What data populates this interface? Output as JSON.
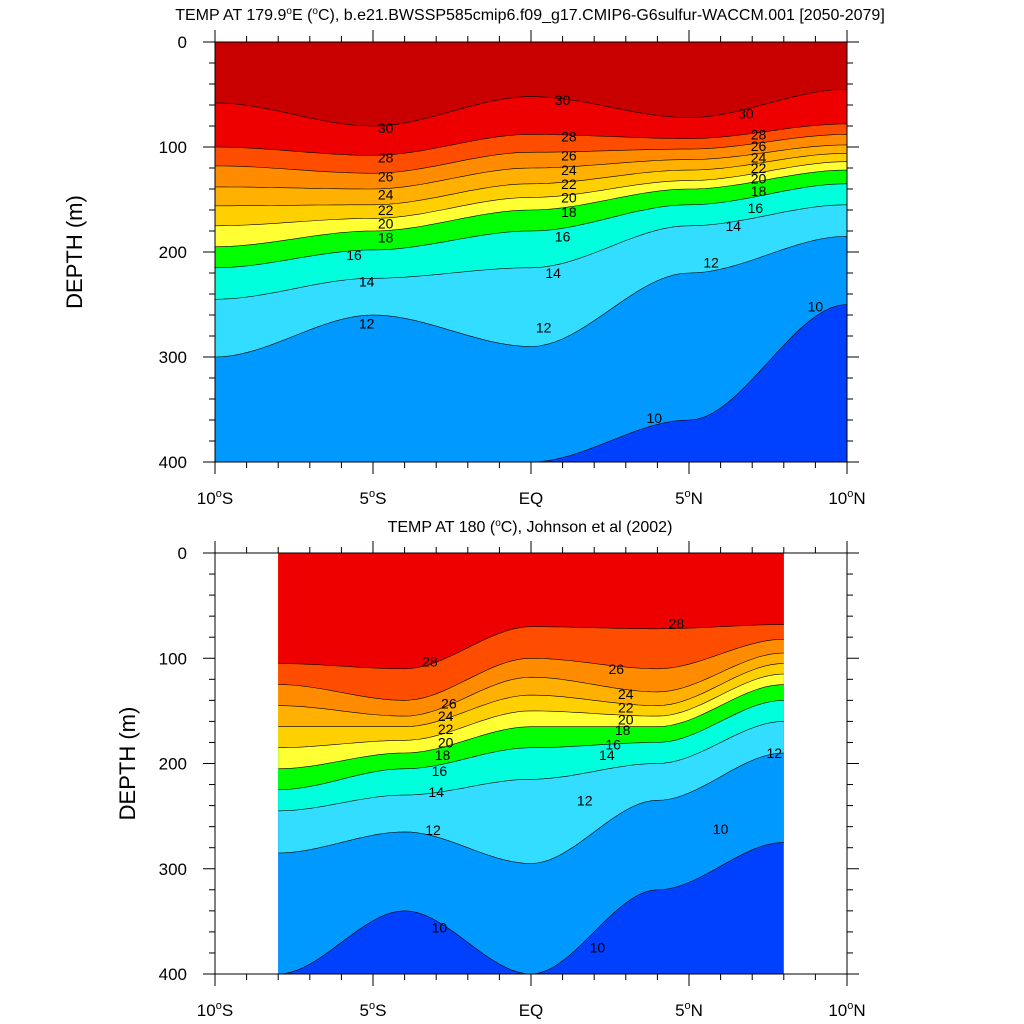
{
  "chart_data": [
    {
      "type": "heatmap",
      "subtype": "filled-contour",
      "title_parts": [
        "TEMP AT 179.9",
        "o",
        "E (",
        "o",
        "C), b.e21.BWSSP585cmip6.f09_g17.CMIP6-G6sulfur-WACCM.001 [2050-2079]"
      ],
      "xlabel": "",
      "ylabel": "DEPTH (m)",
      "xlim": [
        -10,
        10
      ],
      "ylim": [
        400,
        0
      ],
      "x_ticks": [
        {
          "value": -10,
          "num": "10",
          "hem": "S"
        },
        {
          "value": -5,
          "num": "5",
          "hem": "S"
        },
        {
          "value": 0,
          "num": "EQ",
          "hem": ""
        },
        {
          "value": 5,
          "num": "5",
          "hem": "N"
        },
        {
          "value": 10,
          "num": "10",
          "hem": "N"
        }
      ],
      "y_ticks": [
        "0",
        "100",
        "200",
        "300",
        "400"
      ],
      "y_tick_values": [
        0,
        100,
        200,
        300,
        400
      ],
      "data_extent_lat": [
        -10,
        10
      ],
      "contour_levels": [
        30,
        28,
        26,
        24,
        22,
        20,
        18,
        16,
        14,
        12,
        10
      ],
      "isotherm_depths_m": [
        {
          "level": 30,
          "lat": [
            -10,
            -5,
            0,
            5,
            10
          ],
          "depth": [
            58,
            80,
            52,
            72,
            45
          ]
        },
        {
          "level": 28,
          "lat": [
            -10,
            -5,
            0,
            5,
            10
          ],
          "depth": [
            100,
            108,
            88,
            92,
            78
          ]
        },
        {
          "level": 26,
          "lat": [
            -10,
            -5,
            0,
            5,
            10
          ],
          "depth": [
            118,
            125,
            105,
            102,
            88
          ]
        },
        {
          "level": 24,
          "lat": [
            -10,
            -5,
            0,
            5,
            10
          ],
          "depth": [
            138,
            140,
            120,
            112,
            98
          ]
        },
        {
          "level": 22,
          "lat": [
            -10,
            -5,
            0,
            5,
            10
          ],
          "depth": [
            156,
            155,
            135,
            122,
            106
          ]
        },
        {
          "level": 20,
          "lat": [
            -10,
            -5,
            0,
            5,
            10
          ],
          "depth": [
            175,
            168,
            148,
            132,
            114
          ]
        },
        {
          "level": 18,
          "lat": [
            -10,
            -5,
            0,
            5,
            10
          ],
          "depth": [
            195,
            180,
            160,
            140,
            122
          ]
        },
        {
          "level": 16,
          "lat": [
            -10,
            -5,
            0,
            5,
            10
          ],
          "depth": [
            215,
            198,
            180,
            155,
            135
          ]
        },
        {
          "level": 14,
          "lat": [
            -10,
            -5,
            0,
            5,
            10
          ],
          "depth": [
            245,
            225,
            215,
            175,
            155
          ]
        },
        {
          "level": 12,
          "lat": [
            -10,
            -5,
            0,
            5,
            10
          ],
          "depth": [
            300,
            260,
            290,
            220,
            185
          ]
        },
        {
          "level": 10,
          "lat": [
            -10,
            -5,
            0,
            5,
            10
          ],
          "depth": [
            400,
            400,
            400,
            360,
            250
          ]
        }
      ],
      "label_positions": [
        {
          "text": "30",
          "lat": -4.6,
          "depth": 82
        },
        {
          "text": "30",
          "lat": 1.0,
          "depth": 55
        },
        {
          "text": "30",
          "lat": 6.8,
          "depth": 68
        },
        {
          "text": "28",
          "lat": -4.6,
          "depth": 110
        },
        {
          "text": "28",
          "lat": 1.2,
          "depth": 90
        },
        {
          "text": "28",
          "lat": 7.2,
          "depth": 88
        },
        {
          "text": "26",
          "lat": -4.6,
          "depth": 128
        },
        {
          "text": "26",
          "lat": 1.2,
          "depth": 108
        },
        {
          "text": "26",
          "lat": 7.2,
          "depth": 99
        },
        {
          "text": "24",
          "lat": -4.6,
          "depth": 145
        },
        {
          "text": "24",
          "lat": 1.2,
          "depth": 122
        },
        {
          "text": "24",
          "lat": 7.2,
          "depth": 110
        },
        {
          "text": "22",
          "lat": -4.6,
          "depth": 160
        },
        {
          "text": "22",
          "lat": 1.2,
          "depth": 135
        },
        {
          "text": "22",
          "lat": 7.2,
          "depth": 120
        },
        {
          "text": "20",
          "lat": -4.6,
          "depth": 173
        },
        {
          "text": "20",
          "lat": 1.2,
          "depth": 148
        },
        {
          "text": "20",
          "lat": 7.2,
          "depth": 130
        },
        {
          "text": "18",
          "lat": -4.6,
          "depth": 186
        },
        {
          "text": "18",
          "lat": 1.2,
          "depth": 162
        },
        {
          "text": "18",
          "lat": 7.2,
          "depth": 142
        },
        {
          "text": "16",
          "lat": -5.6,
          "depth": 203
        },
        {
          "text": "16",
          "lat": 1.0,
          "depth": 185
        },
        {
          "text": "16",
          "lat": 7.1,
          "depth": 158
        },
        {
          "text": "14",
          "lat": -5.2,
          "depth": 228
        },
        {
          "text": "14",
          "lat": 0.7,
          "depth": 220
        },
        {
          "text": "14",
          "lat": 6.4,
          "depth": 175
        },
        {
          "text": "12",
          "lat": -5.2,
          "depth": 268
        },
        {
          "text": "12",
          "lat": 0.4,
          "depth": 272
        },
        {
          "text": "12",
          "lat": 5.7,
          "depth": 210
        },
        {
          "text": "10",
          "lat": 3.9,
          "depth": 358
        },
        {
          "text": "10",
          "lat": 9.0,
          "depth": 252
        }
      ]
    },
    {
      "type": "heatmap",
      "subtype": "filled-contour",
      "title_parts": [
        "TEMP AT 180 (",
        "o",
        "C), Johnson et al (2002)"
      ],
      "xlabel": "",
      "ylabel": "DEPTH (m)",
      "xlim": [
        -10,
        10
      ],
      "ylim": [
        400,
        0
      ],
      "x_ticks": [
        {
          "value": -10,
          "num": "10",
          "hem": "S"
        },
        {
          "value": -5,
          "num": "5",
          "hem": "S"
        },
        {
          "value": 0,
          "num": "EQ",
          "hem": ""
        },
        {
          "value": 5,
          "num": "5",
          "hem": "N"
        },
        {
          "value": 10,
          "num": "10",
          "hem": "N"
        }
      ],
      "y_ticks": [
        "0",
        "100",
        "200",
        "300",
        "400"
      ],
      "y_tick_values": [
        0,
        100,
        200,
        300,
        400
      ],
      "data_extent_lat": [
        -8,
        8
      ],
      "contour_levels": [
        28,
        26,
        24,
        22,
        20,
        18,
        16,
        14,
        12,
        10
      ],
      "isotherm_depths_m": [
        {
          "level": 28,
          "lat": [
            -8,
            -4,
            0,
            4,
            8
          ],
          "depth": [
            105,
            110,
            70,
            72,
            68
          ]
        },
        {
          "level": 26,
          "lat": [
            -8,
            -4,
            0,
            4,
            8
          ],
          "depth": [
            125,
            140,
            100,
            110,
            82
          ]
        },
        {
          "level": 24,
          "lat": [
            -8,
            -4,
            0,
            4,
            8
          ],
          "depth": [
            145,
            155,
            118,
            132,
            95
          ]
        },
        {
          "level": 22,
          "lat": [
            -8,
            -4,
            0,
            4,
            8
          ],
          "depth": [
            165,
            165,
            135,
            145,
            105
          ]
        },
        {
          "level": 20,
          "lat": [
            -8,
            -4,
            0,
            4,
            8
          ],
          "depth": [
            185,
            178,
            150,
            155,
            115
          ]
        },
        {
          "level": 18,
          "lat": [
            -8,
            -4,
            0,
            4,
            8
          ],
          "depth": [
            205,
            190,
            165,
            165,
            125
          ]
        },
        {
          "level": 16,
          "lat": [
            -8,
            -4,
            0,
            4,
            8
          ],
          "depth": [
            225,
            205,
            185,
            180,
            140
          ]
        },
        {
          "level": 14,
          "lat": [
            -8,
            -4,
            0,
            4,
            8
          ],
          "depth": [
            245,
            230,
            215,
            200,
            160
          ]
        },
        {
          "level": 12,
          "lat": [
            -8,
            -4,
            0,
            4,
            8
          ],
          "depth": [
            285,
            265,
            295,
            235,
            190
          ]
        },
        {
          "level": 10,
          "lat": [
            -8,
            -4,
            0,
            4,
            8
          ],
          "depth": [
            400,
            340,
            400,
            320,
            275
          ]
        }
      ],
      "label_positions": [
        {
          "text": "28",
          "lat": 4.6,
          "depth": 67
        },
        {
          "text": "28",
          "lat": -3.2,
          "depth": 103
        },
        {
          "text": "26",
          "lat": 2.7,
          "depth": 110
        },
        {
          "text": "26",
          "lat": -2.6,
          "depth": 143
        },
        {
          "text": "24",
          "lat": 3.0,
          "depth": 134
        },
        {
          "text": "24",
          "lat": -2.7,
          "depth": 155
        },
        {
          "text": "22",
          "lat": 3.0,
          "depth": 147
        },
        {
          "text": "22",
          "lat": -2.7,
          "depth": 167
        },
        {
          "text": "20",
          "lat": 3.0,
          "depth": 158
        },
        {
          "text": "20",
          "lat": -2.7,
          "depth": 180
        },
        {
          "text": "18",
          "lat": 2.9,
          "depth": 168
        },
        {
          "text": "18",
          "lat": -2.8,
          "depth": 192
        },
        {
          "text": "16",
          "lat": 2.6,
          "depth": 182
        },
        {
          "text": "16",
          "lat": -2.9,
          "depth": 207
        },
        {
          "text": "14",
          "lat": 2.4,
          "depth": 192
        },
        {
          "text": "14",
          "lat": -3.0,
          "depth": 227
        },
        {
          "text": "12",
          "lat": 7.7,
          "depth": 190
        },
        {
          "text": "12",
          "lat": 1.7,
          "depth": 235
        },
        {
          "text": "12",
          "lat": -3.1,
          "depth": 263
        },
        {
          "text": "10",
          "lat": 6.0,
          "depth": 262
        },
        {
          "text": "10",
          "lat": -2.9,
          "depth": 356
        },
        {
          "text": "10",
          "lat": 2.1,
          "depth": 375
        }
      ]
    }
  ]
}
